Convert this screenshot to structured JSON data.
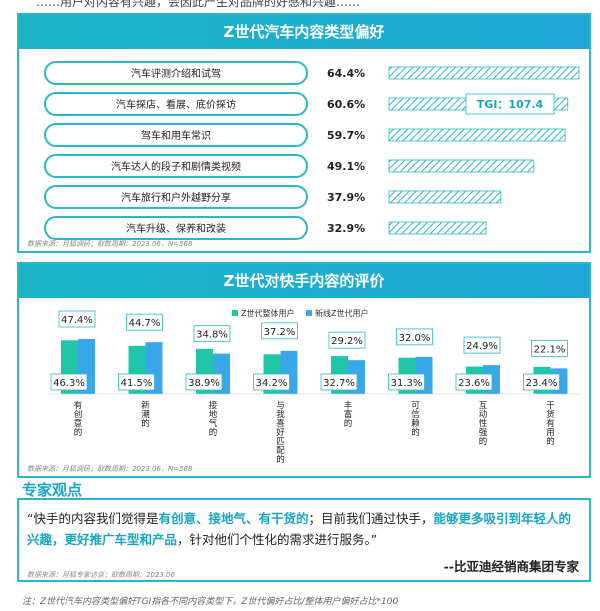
{
  "header_fragment": "……用户对内容有兴趣，会因此产生对品牌的好感和兴趣……",
  "panel1": {
    "title": "Z世代汽车内容类型偏好",
    "source": "数据来源：月狐调研；取数周期：2023.06，N=568",
    "tgi_label": "TGI：107.4"
  },
  "panel2": {
    "title": "Z世代对快手内容的评价",
    "source": "数据来源：月狐调研；取数周期：2023.06，N=568"
  },
  "expert": {
    "title": "专家观点",
    "quote_pre": "“快手的内容我们觉得是",
    "quote_b1": "有创意、接地气、有干货的",
    "quote_mid": "；目前我们通过快手，",
    "quote_b2": "能够更多吸引到年轻人的兴趣，更好推广车型和产品",
    "quote_post": "，针对他们个性化的需求进行服务。”",
    "signature": "--比亚迪经销商集团专家",
    "source": "数据来源：月狐专家访谈；取数周期：2023.06"
  },
  "footnote": "注：Z世代汽车内容类型偏好TGI指各不同内容类型下，Z世代偏好占比/整体用户偏好占比*100",
  "colors": {
    "accent": "#1ab6c8",
    "bar_hatch": "#2bb8c6",
    "series1": "#1fc7a8",
    "series2": "#3aa8e8"
  },
  "chart_data": [
    {
      "type": "bar",
      "orientation": "horizontal",
      "title": "Z世代汽车内容类型偏好",
      "categories": [
        "汽车评测介绍和试驾",
        "汽车探店、看展、底价探访",
        "驾车和用车常识",
        "汽车达人的段子和剧情类视频",
        "汽车旅行和户外越野分享",
        "汽车升级、保养和改装"
      ],
      "values": [
        64.4,
        60.6,
        59.7,
        49.1,
        37.9,
        32.9
      ],
      "value_labels": [
        "64.4%",
        "60.6%",
        "59.7%",
        "49.1%",
        "37.9%",
        "32.9%"
      ],
      "xlim": [
        0,
        70
      ],
      "grid": false
    },
    {
      "type": "bar",
      "title": "Z世代对快手内容的评价",
      "categories": [
        "有创意的",
        "新潮的",
        "接地气的",
        "与我喜好匹配的",
        "丰富的",
        "可信赖的",
        "互动性强的",
        "干货有用的"
      ],
      "series": [
        {
          "name": "Z世代整体用户",
          "values": [
            46.3,
            41.5,
            38.9,
            34.2,
            32.7,
            31.3,
            23.6,
            23.4
          ],
          "labels": [
            "46.3%",
            "41.5%",
            "38.9%",
            "34.2%",
            "32.7%",
            "31.3%",
            "23.6%",
            "23.4%"
          ]
        },
        {
          "name": "新线Z世代用户",
          "values": [
            47.4,
            44.7,
            34.8,
            37.2,
            29.2,
            32.0,
            24.9,
            22.1
          ],
          "labels": [
            "47.4%",
            "44.7%",
            "34.8%",
            "37.2%",
            "29.2%",
            "32.0%",
            "24.9%",
            "22.1%"
          ]
        }
      ],
      "ylim": [
        0,
        50
      ],
      "legend": "top",
      "grid": false
    }
  ]
}
